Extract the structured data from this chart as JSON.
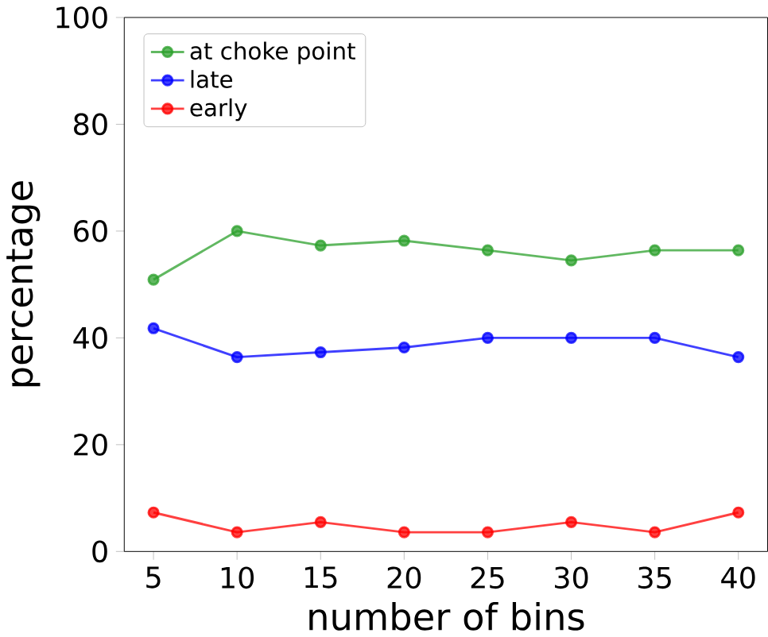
{
  "chart_data": {
    "type": "line",
    "xlabel": "number of bins",
    "ylabel": "percentage",
    "x": [
      5,
      10,
      15,
      20,
      25,
      30,
      35,
      40
    ],
    "series": [
      {
        "name": "at choke point",
        "color": "#2ca02c",
        "values": [
          50.9,
          60.0,
          57.3,
          58.2,
          56.4,
          54.5,
          56.4,
          56.4
        ]
      },
      {
        "name": "late",
        "color": "#0000ff",
        "values": [
          41.8,
          36.4,
          37.3,
          38.2,
          40.0,
          40.0,
          40.0,
          36.4
        ]
      },
      {
        "name": "early",
        "color": "#ff0000",
        "values": [
          7.3,
          3.6,
          5.5,
          3.6,
          3.6,
          5.5,
          3.6,
          7.3
        ]
      }
    ],
    "xlim": [
      3.25,
      41.75
    ],
    "ylim": [
      0,
      100
    ],
    "xticks": [
      5,
      10,
      15,
      20,
      25,
      30,
      35,
      40
    ],
    "yticks": [
      0,
      20,
      40,
      60,
      80,
      100
    ],
    "legend": "top left",
    "marker": "circle",
    "line_style": "solid"
  }
}
